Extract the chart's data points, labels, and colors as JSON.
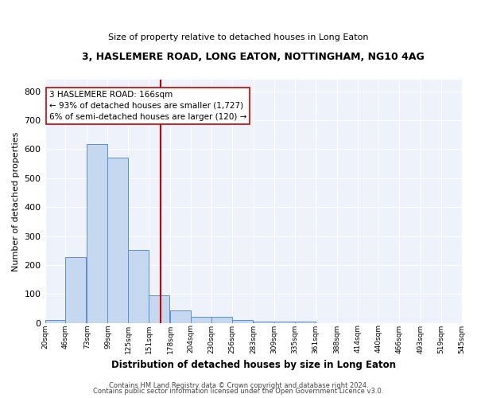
{
  "title": "3, HASLEMERE ROAD, LONG EATON, NOTTINGHAM, NG10 4AG",
  "subtitle": "Size of property relative to detached houses in Long Eaton",
  "xlabel": "Distribution of detached houses by size in Long Eaton",
  "ylabel": "Number of detached properties",
  "bar_color": "#c5d8f0",
  "bar_edge_color": "#5b8fc9",
  "background_color": "#eef2fb",
  "grid_color": "#ffffff",
  "bins": [
    20,
    46,
    73,
    99,
    125,
    151,
    178,
    204,
    230,
    256,
    283,
    309,
    335,
    361,
    388,
    414,
    440,
    466,
    493,
    519,
    545
  ],
  "counts": [
    10,
    228,
    617,
    570,
    252,
    97,
    45,
    23,
    23,
    10,
    5,
    5,
    5,
    0,
    0,
    0,
    0,
    0,
    0,
    0
  ],
  "property_size": 166,
  "red_line_color": "#cc0000",
  "annotation_line1": "3 HASLEMERE ROAD: 166sqm",
  "annotation_line2": "← 93% of detached houses are smaller (1,727)",
  "annotation_line3": "6% of semi-detached houses are larger (120) →",
  "annotation_box_color": "#ffffff",
  "annotation_box_edge": "#cc0000",
  "ylim": [
    0,
    840
  ],
  "yticks": [
    0,
    100,
    200,
    300,
    400,
    500,
    600,
    700,
    800
  ],
  "footer_line1": "Contains HM Land Registry data © Crown copyright and database right 2024.",
  "footer_line2": "Contains public sector information licensed under the Open Government Licence v3.0."
}
